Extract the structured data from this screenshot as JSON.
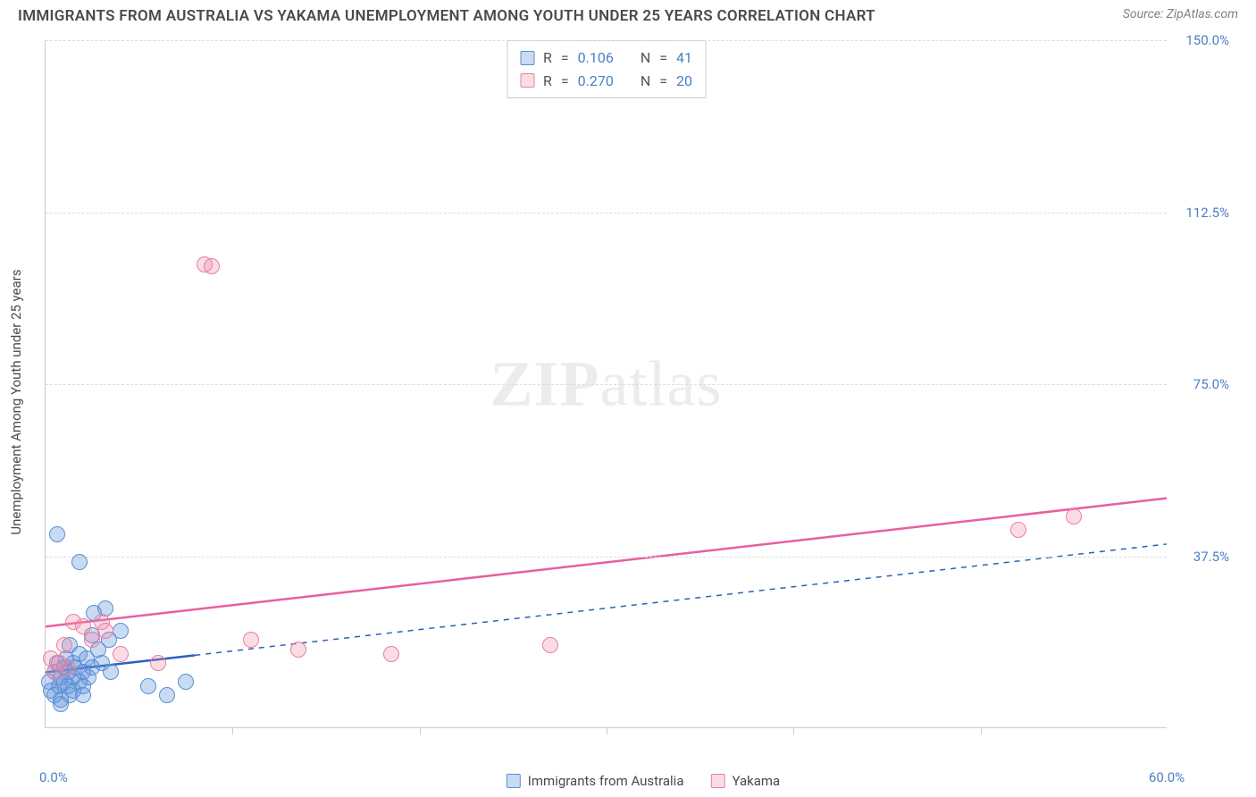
{
  "title": "IMMIGRANTS FROM AUSTRALIA VS YAKAMA UNEMPLOYMENT AMONG YOUTH UNDER 25 YEARS CORRELATION CHART",
  "source_label": "Source: ",
  "source_value": "ZipAtlas.com",
  "watermark_bold": "ZIP",
  "watermark_light": "atlas",
  "y_axis_title": "Unemployment Among Youth under 25 years",
  "chart": {
    "type": "scatter",
    "xlim": [
      0,
      60
    ],
    "ylim": [
      0,
      150
    ],
    "x_min_label": "0.0%",
    "x_max_label": "60.0%",
    "x_tick_positions": [
      10,
      20,
      30,
      40,
      50
    ],
    "y_ticks": [
      {
        "value": 37.5,
        "label": "37.5%"
      },
      {
        "value": 75.0,
        "label": "75.0%"
      },
      {
        "value": 112.5,
        "label": "112.5%"
      },
      {
        "value": 150.0,
        "label": "150.0%"
      }
    ],
    "grid_color": "#dddddd",
    "background_color": "#ffffff",
    "axis_color": "#cccccc",
    "tick_label_color": "#4a7fc4",
    "point_radius": 9,
    "point_border_width": 1.2,
    "series": [
      {
        "name": "Immigrants from Australia",
        "fill_color": "rgba(100,150,220,0.35)",
        "stroke_color": "#5a8fd0",
        "line_color": "#2a5fbf",
        "line_dash": "6 6",
        "line_width": 1.5,
        "solid_until_x": 8,
        "solid_line_width": 2.5,
        "R_label": "R",
        "R_equals": "=",
        "R_value": "0.106",
        "N_label": "N",
        "N_equals": "=",
        "N_value": "41",
        "regression": {
          "x1": 0,
          "y1": 12,
          "x2": 60,
          "y2": 40
        },
        "points": [
          [
            0.2,
            10
          ],
          [
            0.3,
            8
          ],
          [
            0.5,
            12
          ],
          [
            0.5,
            7
          ],
          [
            0.6,
            14
          ],
          [
            0.7,
            9
          ],
          [
            0.8,
            11
          ],
          [
            0.8,
            6
          ],
          [
            0.8,
            5
          ],
          [
            1.0,
            13
          ],
          [
            1.0,
            10
          ],
          [
            1.1,
            15
          ],
          [
            1.2,
            12
          ],
          [
            1.2,
            9
          ],
          [
            1.3,
            18
          ],
          [
            1.3,
            7
          ],
          [
            1.5,
            14
          ],
          [
            1.5,
            11
          ],
          [
            1.5,
            8
          ],
          [
            1.6,
            13
          ],
          [
            1.8,
            16
          ],
          [
            1.8,
            10
          ],
          [
            2.0,
            12
          ],
          [
            2.0,
            9
          ],
          [
            2.0,
            7
          ],
          [
            2.2,
            15
          ],
          [
            2.3,
            11
          ],
          [
            2.5,
            13
          ],
          [
            2.5,
            20
          ],
          [
            2.6,
            25
          ],
          [
            2.8,
            17
          ],
          [
            3.0,
            14
          ],
          [
            3.2,
            26
          ],
          [
            3.4,
            19
          ],
          [
            3.5,
            12
          ],
          [
            0.6,
            42
          ],
          [
            1.8,
            36
          ],
          [
            4.0,
            21
          ],
          [
            5.5,
            9
          ],
          [
            6.5,
            7
          ],
          [
            7.5,
            10
          ]
        ]
      },
      {
        "name": "Yakama",
        "fill_color": "rgba(240,140,170,0.30)",
        "stroke_color": "#e87fa3",
        "line_color": "#e85f9f",
        "line_dash": "none",
        "line_width": 2.5,
        "R_label": "R",
        "R_equals": "=",
        "R_value": "0.270",
        "N_label": "N",
        "N_equals": "=",
        "N_value": "20",
        "regression": {
          "x1": 0,
          "y1": 22,
          "x2": 60,
          "y2": 50
        },
        "points": [
          [
            0.3,
            15
          ],
          [
            0.5,
            12
          ],
          [
            0.7,
            14
          ],
          [
            1.0,
            18
          ],
          [
            1.2,
            13
          ],
          [
            1.5,
            23
          ],
          [
            2.0,
            22
          ],
          [
            2.5,
            19
          ],
          [
            3.0,
            23
          ],
          [
            3.2,
            21
          ],
          [
            4.0,
            16
          ],
          [
            6.0,
            14
          ],
          [
            8.5,
            101
          ],
          [
            8.9,
            100.5
          ],
          [
            11.0,
            19
          ],
          [
            13.5,
            17
          ],
          [
            18.5,
            16
          ],
          [
            27.0,
            18
          ],
          [
            52.0,
            43
          ],
          [
            55.0,
            46
          ]
        ]
      }
    ],
    "legend_items": [
      {
        "label": "Immigrants from Australia",
        "fill": "rgba(100,150,220,0.35)",
        "stroke": "#5a8fd0"
      },
      {
        "label": "Yakama",
        "fill": "rgba(240,140,170,0.30)",
        "stroke": "#e87fa3"
      }
    ]
  }
}
